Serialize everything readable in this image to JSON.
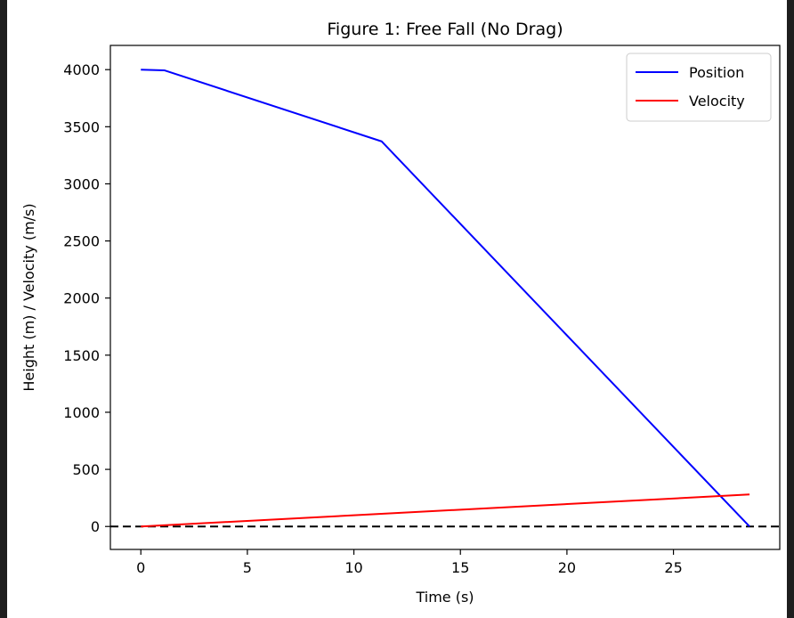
{
  "chart_data": {
    "type": "line",
    "title": "Figure 1: Free Fall (No Drag)",
    "xlabel": "Time (s)",
    "ylabel": "Height (m) / Velocity (m/s)",
    "xlim": [
      -1.43,
      29.99
    ],
    "ylim": [
      -201,
      4212
    ],
    "xticks": [
      0,
      5,
      10,
      15,
      20,
      25
    ],
    "yticks": [
      0,
      500,
      1000,
      1500,
      2000,
      2500,
      3000,
      3500,
      4000
    ],
    "grid": false,
    "legend_position": "top-right",
    "series": [
      {
        "name": "Position",
        "color": "#0000ff",
        "x": [
          0,
          1.1,
          11.3,
          28.57
        ],
        "y": [
          4000,
          3994,
          3372,
          0
        ]
      },
      {
        "name": "Velocity",
        "color": "#ff0000",
        "x": [
          0,
          28.57
        ],
        "y": [
          0,
          280
        ]
      }
    ],
    "reference_lines": [
      {
        "axis": "y",
        "value": 0,
        "color": "#000000",
        "style": "dashed"
      }
    ]
  }
}
